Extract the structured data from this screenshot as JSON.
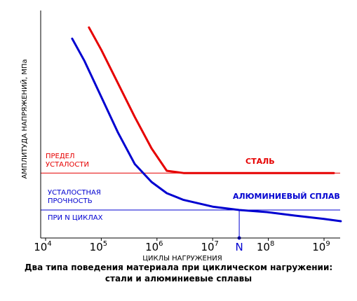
{
  "chart_data": {
    "type": "line",
    "xscale": "log",
    "xlim": [
      10000,
      3000000000
    ],
    "ylim": [
      0,
      1
    ],
    "xlabel": "ЦИКЛЫ НАГРУЖЕНИЯ",
    "ylabel": "АМПЛИТУДА НАПРЯЖЕНИЙ, МПа",
    "x_ticks": [
      {
        "value": 10000,
        "base": "10",
        "exp": "4"
      },
      {
        "value": 100000,
        "base": "10",
        "exp": "5"
      },
      {
        "value": 1000000,
        "base": "10",
        "exp": "6"
      },
      {
        "value": 10000000,
        "base": "10",
        "exp": "7"
      },
      {
        "value": 100000000,
        "base": "10",
        "exp": "8"
      },
      {
        "value": 1000000000,
        "base": "10",
        "exp": "9"
      }
    ],
    "n_marker": {
      "label": "N",
      "x": 30000000
    },
    "series": [
      {
        "name": "СТАЛЬ",
        "color": "#e60000",
        "x": [
          60000,
          100000,
          200000,
          400000,
          800000,
          1500000,
          3000000,
          10000000,
          100000000,
          1000000000,
          1500000000
        ],
        "y": [
          0.94,
          0.84,
          0.69,
          0.54,
          0.4,
          0.3,
          0.29,
          0.29,
          0.29,
          0.29,
          0.29
        ]
      },
      {
        "name": "АЛЮМИНИЕВЫЙ СПЛАВ",
        "color": "#0000d0",
        "x": [
          30000,
          50000,
          100000,
          200000,
          400000,
          800000,
          1500000,
          3000000,
          10000000,
          30000000,
          100000000,
          300000000,
          1000000000,
          2000000000
        ],
        "y": [
          0.89,
          0.79,
          0.63,
          0.47,
          0.33,
          0.25,
          0.2,
          0.17,
          0.14,
          0.125,
          0.115,
          0.1,
          0.085,
          0.075
        ]
      }
    ],
    "reference_lines": [
      {
        "label_line1": "ПРЕДЕЛ",
        "label_line2": "УСТАЛОСТИ",
        "y": 0.29,
        "color": "#e60000"
      },
      {
        "label_line1": "УСТАЛОСТНАЯ",
        "label_line2": "ПРОЧНОСТЬ",
        "label_line3": "ПРИ N ЦИКЛАХ",
        "y": 0.125,
        "color": "#0000d0"
      }
    ],
    "series_labels": [
      {
        "text": "СТАЛЬ",
        "color": "#e60000"
      },
      {
        "text": "АЛЮМИНИЕВЫЙ СПЛАВ",
        "color": "#0000d0"
      }
    ]
  },
  "caption": {
    "line1": "Два типа поведения материала при циклическом нагружении:",
    "line2": "стали и алюминиевые сплавы"
  }
}
